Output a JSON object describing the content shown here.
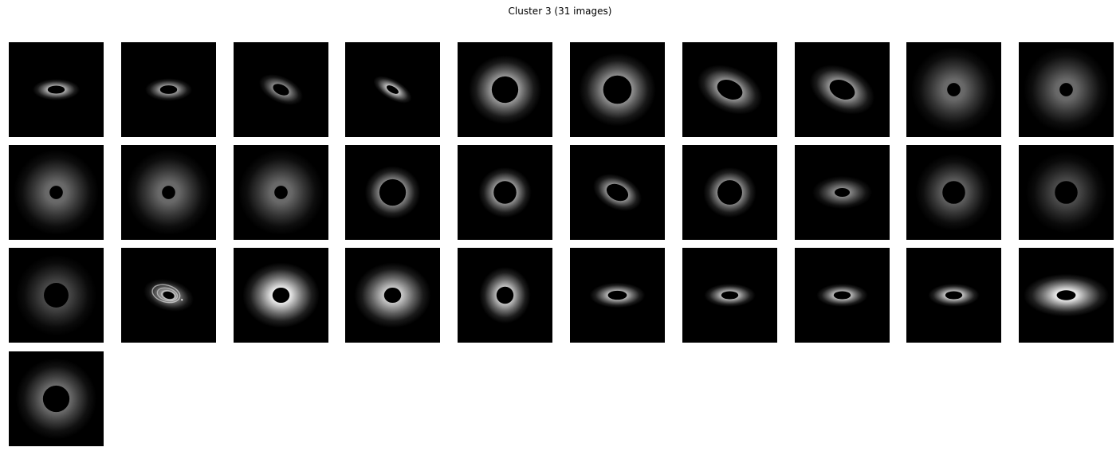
{
  "title": "Cluster 3 (31 images)",
  "colors": {
    "background": "#ffffff",
    "tile_background": "#000000",
    "glow": "#ffffff",
    "core": "#000000"
  },
  "images": [
    {
      "name": "disk-image-1",
      "kind": "disk",
      "inclination": 0.45,
      "angle": 0,
      "brightness": 0.95,
      "spread": 0.55,
      "hole": 0.09
    },
    {
      "name": "disk-image-2",
      "kind": "disk",
      "inclination": 0.48,
      "angle": 0,
      "brightness": 0.85,
      "spread": 0.55,
      "hole": 0.09
    },
    {
      "name": "disk-image-3",
      "kind": "disk",
      "inclination": 0.55,
      "angle": 25,
      "brightness": 0.75,
      "spread": 0.55,
      "hole": 0.09
    },
    {
      "name": "disk-image-4",
      "kind": "disk",
      "inclination": 0.45,
      "angle": 30,
      "brightness": 0.95,
      "spread": 0.5,
      "hole": 0.07
    },
    {
      "name": "disk-image-5",
      "kind": "disk",
      "inclination": 0.95,
      "angle": 0,
      "brightness": 0.85,
      "spread": 0.85,
      "hole": 0.14
    },
    {
      "name": "disk-image-6",
      "kind": "disk",
      "inclination": 0.95,
      "angle": 0,
      "brightness": 0.8,
      "spread": 0.9,
      "hole": 0.15
    },
    {
      "name": "disk-image-7",
      "kind": "disk",
      "inclination": 0.65,
      "angle": 25,
      "brightness": 0.85,
      "spread": 0.8,
      "hole": 0.14
    },
    {
      "name": "disk-image-8",
      "kind": "disk",
      "inclination": 0.65,
      "angle": 25,
      "brightness": 0.85,
      "spread": 0.8,
      "hole": 0.14
    },
    {
      "name": "disk-image-9",
      "kind": "disk",
      "inclination": 1.0,
      "angle": 0,
      "brightness": 0.45,
      "spread": 1.0,
      "hole": 0.07
    },
    {
      "name": "disk-image-10",
      "kind": "disk",
      "inclination": 1.0,
      "angle": 0,
      "brightness": 0.45,
      "spread": 1.0,
      "hole": 0.07
    },
    {
      "name": "disk-image-11",
      "kind": "disk",
      "inclination": 1.0,
      "angle": 0,
      "brightness": 0.45,
      "spread": 1.0,
      "hole": 0.07
    },
    {
      "name": "disk-image-12",
      "kind": "disk",
      "inclination": 1.0,
      "angle": 0,
      "brightness": 0.45,
      "spread": 1.0,
      "hole": 0.07
    },
    {
      "name": "disk-image-13",
      "kind": "disk",
      "inclination": 1.0,
      "angle": 0,
      "brightness": 0.45,
      "spread": 1.0,
      "hole": 0.07
    },
    {
      "name": "disk-image-14",
      "kind": "disk",
      "inclination": 0.95,
      "angle": 0,
      "brightness": 0.95,
      "spread": 0.65,
      "hole": 0.14
    },
    {
      "name": "disk-image-15",
      "kind": "disk",
      "inclination": 0.95,
      "angle": 0,
      "brightness": 0.95,
      "spread": 0.62,
      "hole": 0.12
    },
    {
      "name": "disk-image-16",
      "kind": "disk",
      "inclination": 0.65,
      "angle": 25,
      "brightness": 0.95,
      "spread": 0.6,
      "hole": 0.12
    },
    {
      "name": "disk-image-17",
      "kind": "disk",
      "inclination": 0.95,
      "angle": 0,
      "brightness": 0.95,
      "spread": 0.62,
      "hole": 0.13
    },
    {
      "name": "disk-image-18",
      "kind": "disk",
      "inclination": 0.55,
      "angle": 0,
      "brightness": 0.6,
      "spread": 0.7,
      "hole": 0.08
    },
    {
      "name": "disk-image-19",
      "kind": "disk",
      "inclination": 1.0,
      "angle": 0,
      "brightness": 0.45,
      "spread": 0.9,
      "hole": 0.12
    },
    {
      "name": "disk-image-20",
      "kind": "disk",
      "inclination": 1.0,
      "angle": 0,
      "brightness": 0.35,
      "spread": 0.95,
      "hole": 0.12
    },
    {
      "name": "disk-image-21",
      "kind": "disk",
      "inclination": 1.0,
      "angle": 0,
      "brightness": 0.35,
      "spread": 0.95,
      "hole": 0.13
    },
    {
      "name": "disk-image-22",
      "kind": "spiral",
      "inclination": 0.6,
      "angle": 15,
      "brightness": 0.7,
      "spread": 0.6,
      "hole": 0.06
    },
    {
      "name": "disk-image-23",
      "kind": "disk",
      "inclination": 0.85,
      "angle": 0,
      "brightness": 1.0,
      "spread": 0.9,
      "hole": 0.09
    },
    {
      "name": "disk-image-24",
      "kind": "disk",
      "inclination": 0.85,
      "angle": 0,
      "brightness": 0.85,
      "spread": 0.9,
      "hole": 0.09
    },
    {
      "name": "disk-image-25",
      "kind": "disk",
      "inclination": 1.1,
      "angle": 0,
      "brightness": 0.95,
      "spread": 0.6,
      "hole": 0.09
    },
    {
      "name": "disk-image-26",
      "kind": "disk",
      "inclination": 0.45,
      "angle": 0,
      "brightness": 0.95,
      "spread": 0.65,
      "hole": 0.1
    },
    {
      "name": "disk-image-27",
      "kind": "disk",
      "inclination": 0.45,
      "angle": 0,
      "brightness": 0.95,
      "spread": 0.6,
      "hole": 0.09
    },
    {
      "name": "disk-image-28",
      "kind": "disk",
      "inclination": 0.45,
      "angle": 0,
      "brightness": 0.95,
      "spread": 0.6,
      "hole": 0.09
    },
    {
      "name": "disk-image-29",
      "kind": "disk",
      "inclination": 0.45,
      "angle": 0,
      "brightness": 1.0,
      "spread": 0.6,
      "hole": 0.09
    },
    {
      "name": "disk-image-30",
      "kind": "disk",
      "inclination": 0.5,
      "angle": 0,
      "brightness": 1.0,
      "spread": 1.0,
      "hole": 0.1
    },
    {
      "name": "disk-image-31",
      "kind": "disk",
      "inclination": 1.0,
      "angle": 0,
      "brightness": 0.55,
      "spread": 0.95,
      "hole": 0.14
    }
  ]
}
